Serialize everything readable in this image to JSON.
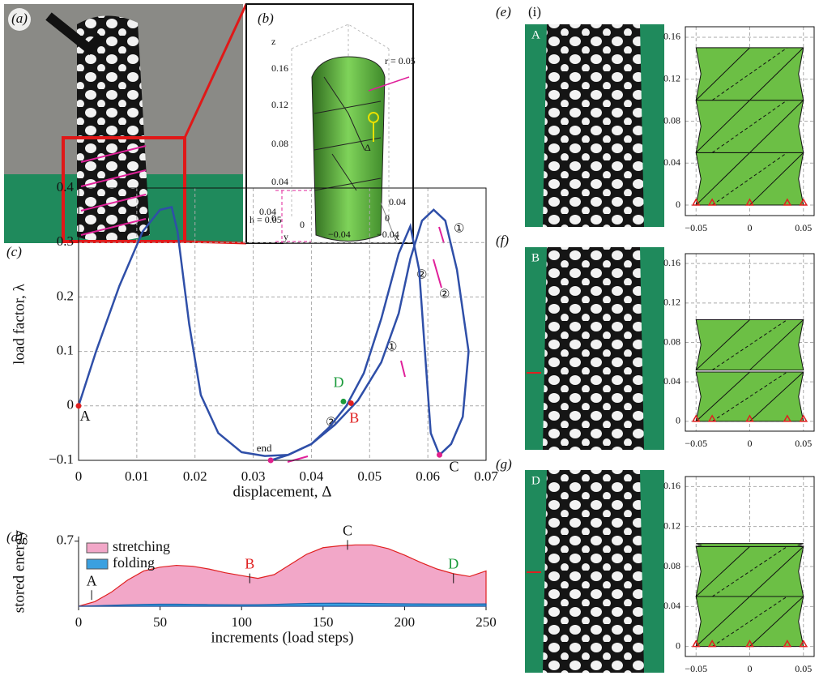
{
  "panel_labels": [
    "(a)",
    "(b)",
    "(c)",
    "(d)",
    "(e)",
    "(i)",
    "(f)",
    "(g)"
  ],
  "photo_labels": [
    "A",
    "B",
    "D"
  ],
  "branch_labels": [
    "①",
    "②"
  ],
  "panel_b": {
    "z_label": "z",
    "x_label": "x",
    "y_label": "y",
    "r_label": "r = 0.05",
    "h_label": "h = 0.05",
    "delta_label": "Δ",
    "zticks": [
      "0.16",
      "0.12",
      "0.08",
      "0.04",
      "0"
    ],
    "xticks": [
      "0.04",
      "0",
      "−0.04"
    ],
    "yticks": [
      "0.04",
      "0",
      "−0.04"
    ]
  },
  "chart_data": [
    {
      "type": "line",
      "xlabel": "displacement, Δ",
      "ylabel": "load factor, λ",
      "xlim": [
        0,
        0.07
      ],
      "ylim": [
        -0.1,
        0.4
      ],
      "xticks": [
        0,
        0.01,
        0.02,
        0.03,
        0.04,
        0.05,
        0.06,
        0.07
      ],
      "yticks": [
        {
          "value": -0.1,
          "label": "−0.1"
        },
        0,
        0.1,
        0.2,
        0.3,
        0.4
      ],
      "grid": true,
      "series": [
        {
          "color": "#2f4fa8",
          "x": [
            0,
            0.003,
            0.007,
            0.011,
            0.014,
            0.016,
            0.017,
            0.019,
            0.021,
            0.024,
            0.028,
            0.032,
            0.036,
            0.04,
            0.044,
            0.048,
            0.052,
            0.055,
            0.057,
            0.059,
            0.061,
            0.063,
            0.065,
            0.067,
            0.066,
            0.064,
            0.062
          ],
          "values": [
            0,
            0.1,
            0.22,
            0.32,
            0.36,
            0.365,
            0.32,
            0.15,
            0.02,
            -0.05,
            -0.085,
            -0.092,
            -0.09,
            -0.07,
            -0.035,
            0.01,
            0.08,
            0.17,
            0.27,
            0.34,
            0.36,
            0.34,
            0.25,
            0.1,
            -0.02,
            -0.07,
            -0.09
          ]
        },
        {
          "color": "#2f4fa8",
          "x": [
            0.062,
            0.0605,
            0.0595,
            0.0585,
            0.057,
            0.055,
            0.052,
            0.049,
            0.046,
            0.043,
            0.04,
            0.036,
            0.033
          ],
          "values": [
            -0.09,
            -0.05,
            0.1,
            0.25,
            0.33,
            0.28,
            0.16,
            0.06,
            0.0,
            -0.04,
            -0.07,
            -0.09,
            -0.1
          ]
        }
      ],
      "points": [
        {
          "label": "A",
          "x": 0,
          "y": 0,
          "color": "#e02020"
        },
        {
          "label": "D",
          "x": 0.0455,
          "y": 0.008,
          "color": "#1a9a3a"
        },
        {
          "label": "B",
          "x": 0.0468,
          "y": 0.005,
          "color": "#e02020"
        },
        {
          "label": "C",
          "x": 0.062,
          "y": -0.09,
          "color": "#e0208c"
        },
        {
          "label": "end",
          "x": 0.033,
          "y": -0.1,
          "color": "#e0208c"
        }
      ]
    },
    {
      "type": "area",
      "xlabel": "increments (load steps)",
      "ylabel": "stored energy",
      "xlim": [
        0,
        250
      ],
      "ylim": [
        0,
        0.75
      ],
      "xticks": [
        0,
        50,
        100,
        150,
        200,
        250
      ],
      "yticks": [
        0.7
      ],
      "x": [
        0,
        10,
        20,
        30,
        40,
        50,
        60,
        70,
        80,
        90,
        100,
        110,
        120,
        130,
        140,
        150,
        160,
        170,
        180,
        190,
        200,
        210,
        220,
        230,
        240,
        250
      ],
      "series": [
        {
          "name": "stretching",
          "color": "#f2a7c8",
          "values": [
            0,
            0.05,
            0.15,
            0.28,
            0.38,
            0.42,
            0.44,
            0.43,
            0.4,
            0.36,
            0.33,
            0.3,
            0.34,
            0.45,
            0.56,
            0.63,
            0.65,
            0.66,
            0.66,
            0.62,
            0.55,
            0.47,
            0.4,
            0.35,
            0.32,
            0.38
          ]
        },
        {
          "name": "folding",
          "color": "#3aa0e0",
          "values": [
            0,
            0.005,
            0.01,
            0.015,
            0.02,
            0.022,
            0.022,
            0.02,
            0.018,
            0.017,
            0.016,
            0.017,
            0.02,
            0.025,
            0.03,
            0.032,
            0.033,
            0.032,
            0.03,
            0.028,
            0.026,
            0.025,
            0.024,
            0.024,
            0.024,
            0.025
          ]
        }
      ],
      "points": [
        {
          "label": "A",
          "x": 8,
          "y": 0.12,
          "color": "#111111"
        },
        {
          "label": "B",
          "x": 105,
          "y": 0.3,
          "color": "#e02020"
        },
        {
          "label": "C",
          "x": 165,
          "y": 0.66,
          "color": "#111111"
        },
        {
          "label": "D",
          "x": 230,
          "y": 0.3,
          "color": "#1a9a3a"
        }
      ]
    },
    {
      "type": "structure",
      "xlim": [
        -0.06,
        0.06
      ],
      "ylim": [
        -0.01,
        0.17
      ],
      "xticks": [
        {
          "value": -0.05,
          "label": "−0.05"
        },
        0,
        0.05
      ],
      "yticks": [
        0,
        0.04,
        0.08,
        0.12,
        0.16
      ],
      "grid": true,
      "color": "#6cbf45",
      "layers": [
        [
          0,
          0.05
        ],
        [
          0.05,
          0.1
        ],
        [
          0.1,
          0.15
        ]
      ],
      "supports": [
        -0.05,
        -0.035,
        0,
        0.035,
        0.05
      ]
    },
    {
      "type": "structure",
      "xlim": [
        -0.06,
        0.06
      ],
      "ylim": [
        -0.01,
        0.17
      ],
      "xticks": [
        {
          "value": -0.05,
          "label": "−0.05"
        },
        0,
        0.05
      ],
      "yticks": [
        0,
        0.04,
        0.08,
        0.12,
        0.16
      ],
      "grid": true,
      "color": "#6cbf45",
      "layers": [
        [
          0,
          0.05
        ],
        [
          0.052,
          0.103
        ]
      ],
      "supports": [
        -0.05,
        -0.035,
        0,
        0.035,
        0.05
      ]
    },
    {
      "type": "structure",
      "xlim": [
        -0.06,
        0.06
      ],
      "ylim": [
        -0.01,
        0.17
      ],
      "xticks": [
        {
          "value": -0.05,
          "label": "−0.05"
        },
        0,
        0.05
      ],
      "yticks": [
        0,
        0.04,
        0.08,
        0.12,
        0.16
      ],
      "grid": true,
      "color": "#6cbf45",
      "layers": [
        [
          0,
          0.05
        ],
        [
          0.05,
          0.1
        ],
        [
          0.1,
          0.103
        ]
      ],
      "supports": [
        -0.05,
        -0.035,
        0,
        0.035,
        0.05
      ]
    }
  ]
}
